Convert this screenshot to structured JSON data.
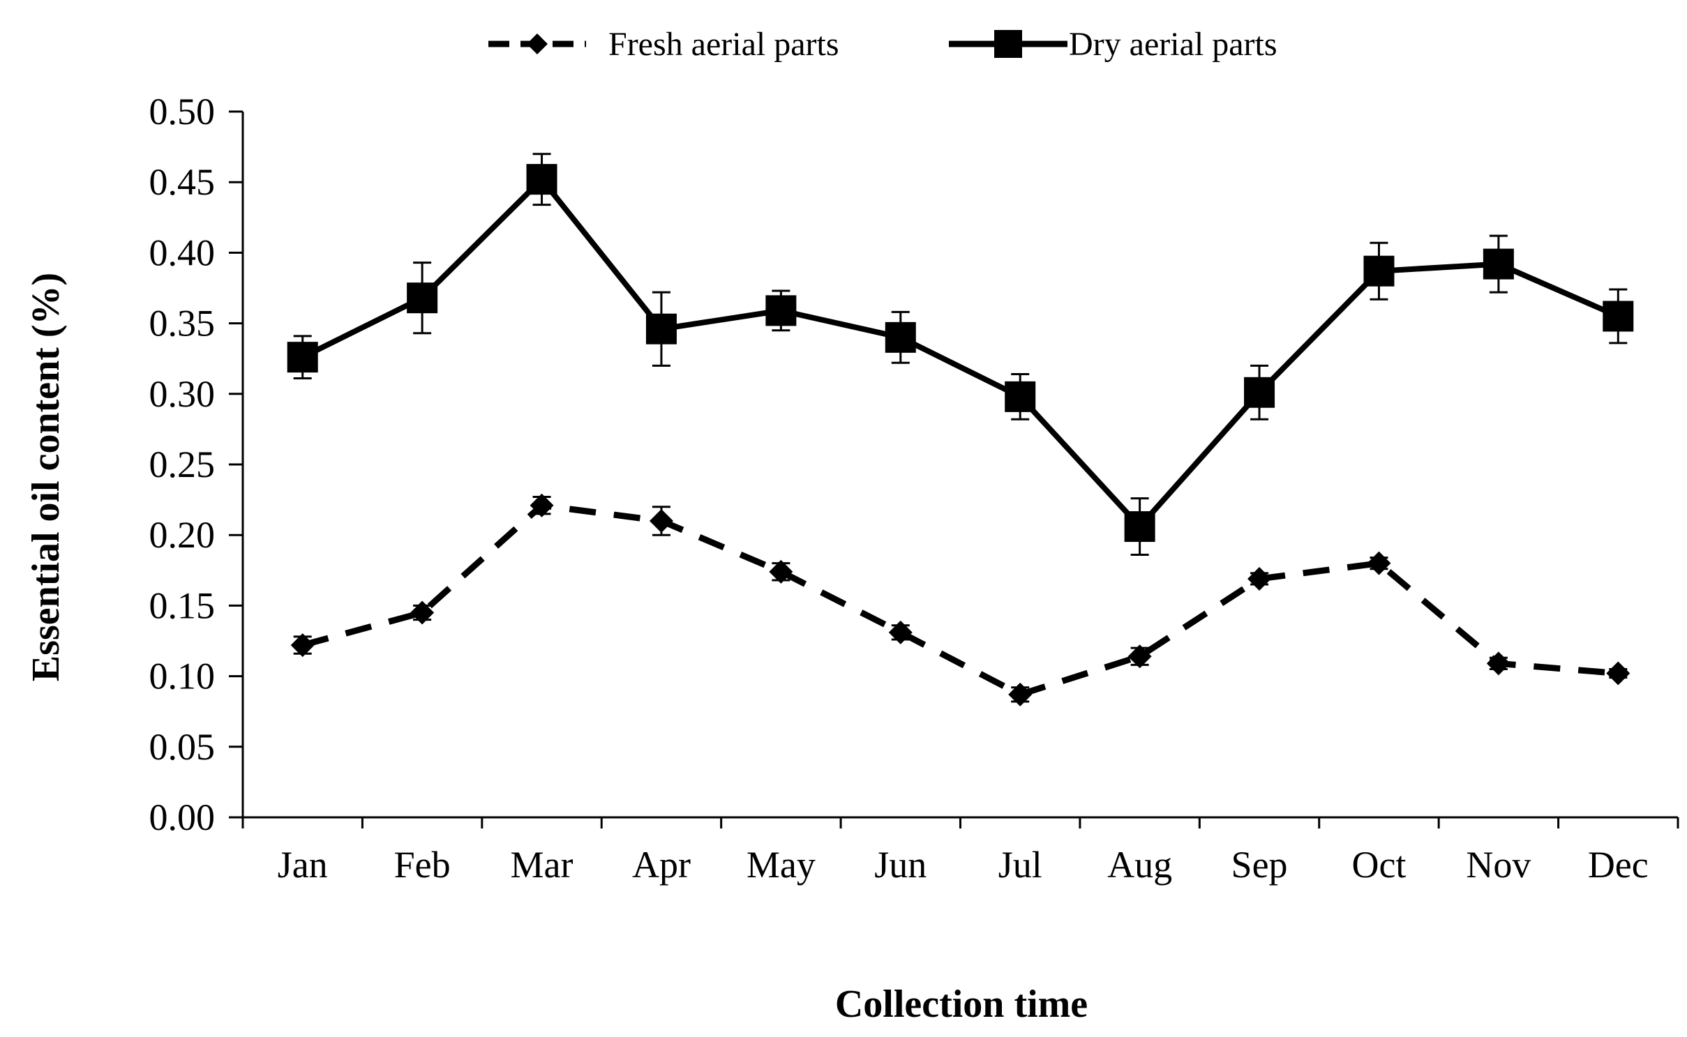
{
  "chart_data": {
    "type": "line",
    "title": "",
    "xlabel": "Collection time",
    "ylabel": "Essential oil content (%)",
    "categories": [
      "Jan",
      "Feb",
      "Mar",
      "Apr",
      "May",
      "Jun",
      "Jul",
      "Aug",
      "Sep",
      "Oct",
      "Nov",
      "Dec"
    ],
    "ylim": [
      0,
      0.5
    ],
    "yticks": [
      "0.00",
      "0.05",
      "0.10",
      "0.15",
      "0.20",
      "0.25",
      "0.30",
      "0.35",
      "0.40",
      "0.45",
      "0.50"
    ],
    "grid": false,
    "legend_position": "top-center",
    "series": [
      {
        "name": "Fresh aerial parts",
        "marker": "diamond",
        "line_style": "dashed",
        "color": "#000000",
        "values": [
          0.122,
          0.145,
          0.221,
          0.21,
          0.174,
          0.131,
          0.087,
          0.114,
          0.169,
          0.18,
          0.109,
          0.102
        ],
        "errors": [
          0.006,
          0.005,
          0.006,
          0.01,
          0.006,
          0.005,
          0.005,
          0.006,
          0.004,
          0.004,
          0.004,
          0.003
        ]
      },
      {
        "name": "Dry aerial parts",
        "marker": "square",
        "line_style": "solid",
        "color": "#000000",
        "values": [
          0.326,
          0.368,
          0.452,
          0.346,
          0.359,
          0.34,
          0.298,
          0.206,
          0.301,
          0.387,
          0.392,
          0.355
        ],
        "errors": [
          0.015,
          0.025,
          0.018,
          0.026,
          0.014,
          0.018,
          0.016,
          0.02,
          0.019,
          0.02,
          0.02,
          0.019
        ]
      }
    ]
  }
}
